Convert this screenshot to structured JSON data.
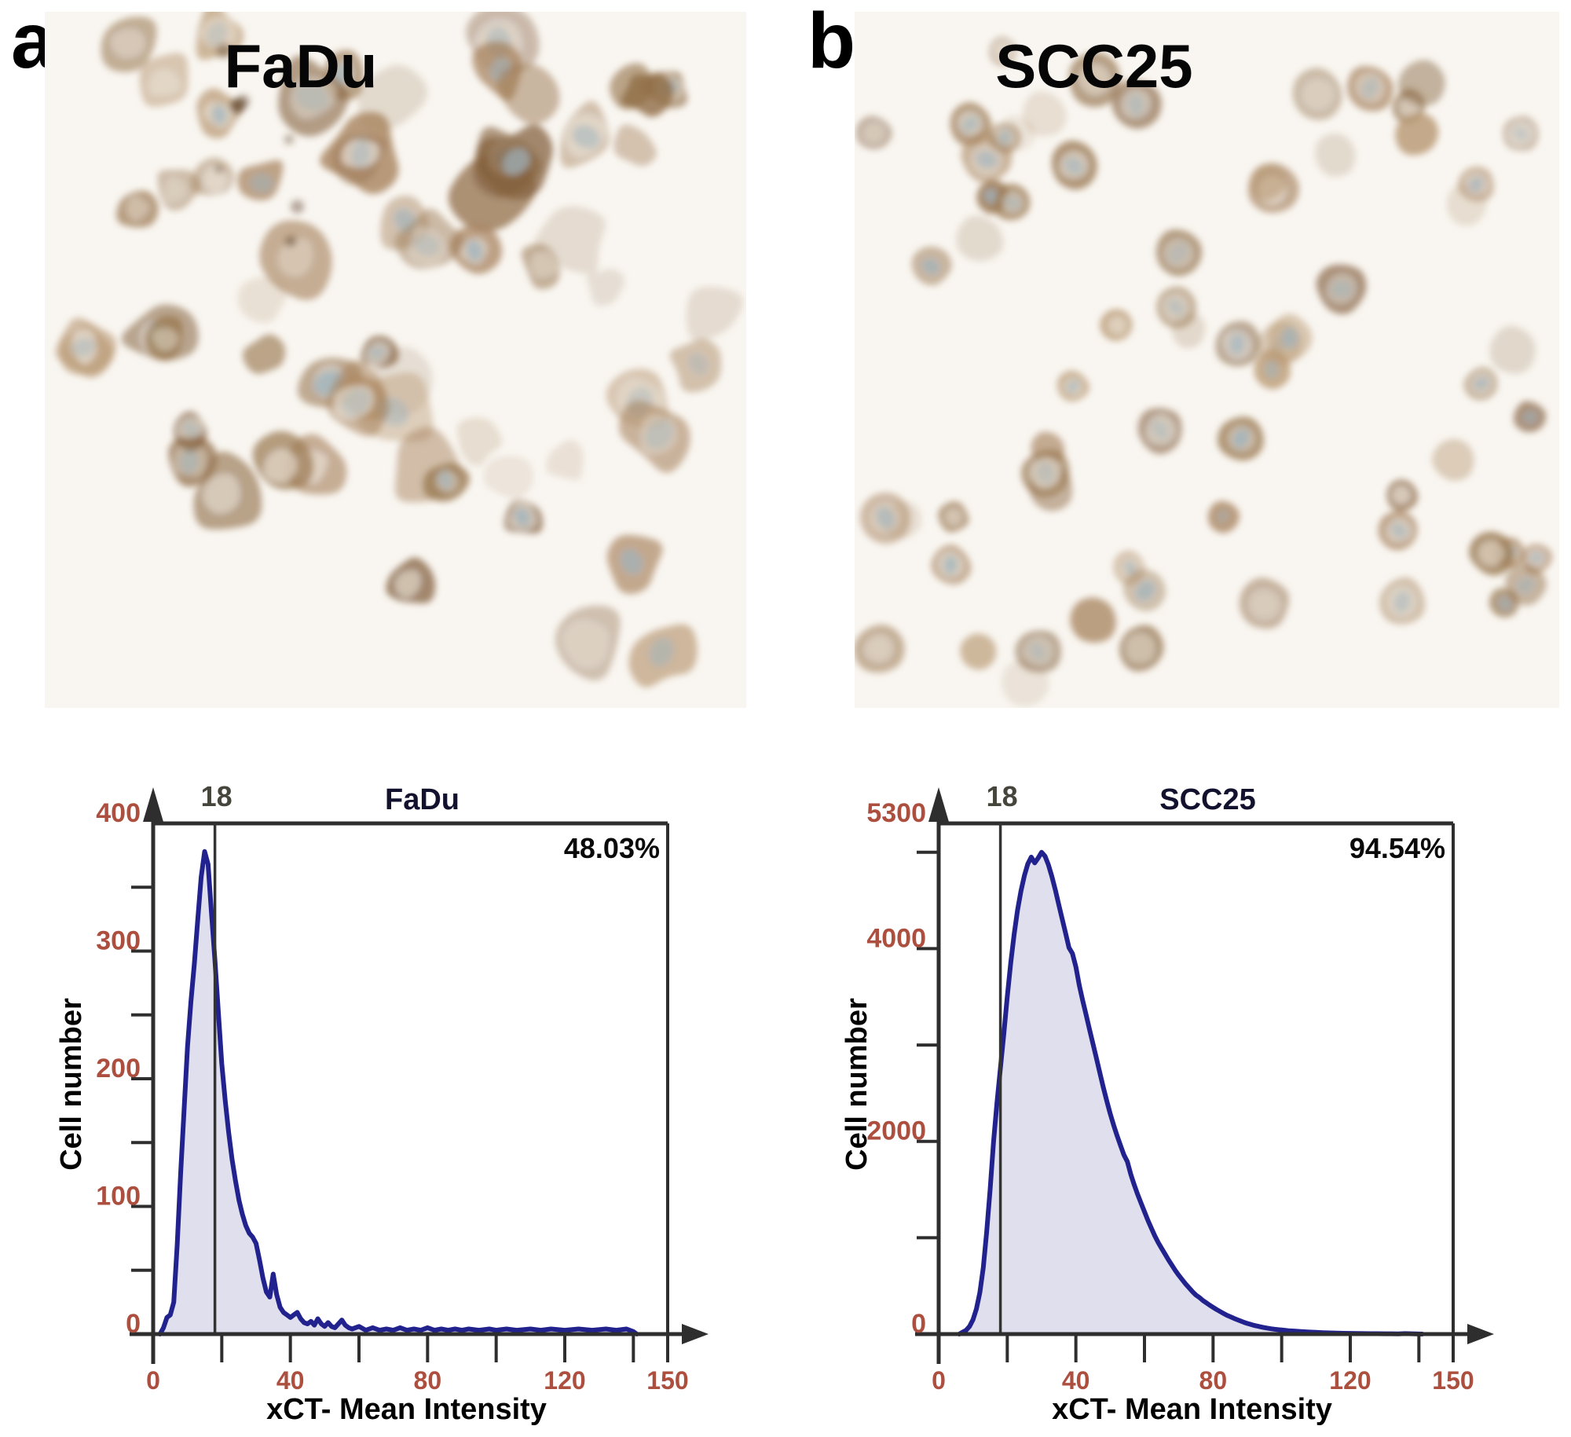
{
  "figure": {
    "panels": [
      {
        "letter": "a",
        "micrograph_title": "FaDu"
      },
      {
        "letter": "b",
        "micrograph_title": "SCC25"
      }
    ]
  },
  "micrograph": {
    "background": "#f9f6f1",
    "membrane_palette": [
      "#8f6b44",
      "#a5805a",
      "#b7966f",
      "#9a7850",
      "#83603d"
    ],
    "cytoplasm_color": "#e8dfd2",
    "nucleus_color": "#9fb3bd",
    "debris_color": "#5f4329",
    "fadu_cell_style": "irregular",
    "scc25_cell_style": "round"
  },
  "chart_colors": {
    "axis": "#2e2e2e",
    "tick_label": "#ad4f3f",
    "curve": "#22228e",
    "fill": "#cdcbe4",
    "title": "#12122f",
    "gate_line": "#333333",
    "gate_label": "#45453c",
    "percent": "#0a0a0a",
    "axis_label": "#000000"
  },
  "chart_data": [
    {
      "type": "area",
      "title": "FaDu",
      "xlabel": "xCT- Mean Intensity",
      "ylabel": "Cell number",
      "xlim": [
        0,
        150
      ],
      "ylim": [
        0,
        400
      ],
      "x_ticks": [
        0,
        20,
        40,
        60,
        80,
        100,
        120,
        140,
        150
      ],
      "x_tick_labels": [
        {
          "v": 0,
          "t": "0"
        },
        {
          "v": 40,
          "t": "40"
        },
        {
          "v": 80,
          "t": "80"
        },
        {
          "v": 120,
          "t": "120"
        },
        {
          "v": 150,
          "t": "150"
        }
      ],
      "y_ticks": [
        50,
        100,
        150,
        200,
        250,
        300,
        350
      ],
      "y_tick_labels": [
        {
          "v": 0,
          "t": "0"
        },
        {
          "v": 100,
          "t": "100"
        },
        {
          "v": 200,
          "t": "200"
        },
        {
          "v": 300,
          "t": "300"
        },
        {
          "v": 400,
          "t": "400"
        }
      ],
      "gate_value": 18,
      "gate_label": "18",
      "percent_label": "48.03%",
      "points": [
        [
          2,
          0
        ],
        [
          3,
          5
        ],
        [
          4,
          13
        ],
        [
          5,
          15
        ],
        [
          6,
          25
        ],
        [
          7,
          70
        ],
        [
          8,
          125
        ],
        [
          9,
          175
        ],
        [
          10,
          225
        ],
        [
          11,
          260
        ],
        [
          12,
          290
        ],
        [
          13,
          325
        ],
        [
          14,
          358
        ],
        [
          15,
          378
        ],
        [
          16,
          368
        ],
        [
          17,
          330
        ],
        [
          18,
          293
        ],
        [
          19,
          252
        ],
        [
          20,
          212
        ],
        [
          21,
          183
        ],
        [
          22,
          158
        ],
        [
          23,
          137
        ],
        [
          24,
          120
        ],
        [
          25,
          105
        ],
        [
          26,
          94
        ],
        [
          27,
          85
        ],
        [
          28,
          79
        ],
        [
          29,
          76
        ],
        [
          30,
          71
        ],
        [
          31,
          58
        ],
        [
          32,
          44
        ],
        [
          33,
          33
        ],
        [
          34,
          29
        ],
        [
          35,
          47
        ],
        [
          36,
          31
        ],
        [
          37,
          21
        ],
        [
          38,
          17
        ],
        [
          39,
          15
        ],
        [
          40,
          13
        ],
        [
          41,
          15
        ],
        [
          42,
          17
        ],
        [
          43,
          12
        ],
        [
          44,
          9
        ],
        [
          45,
          8
        ],
        [
          46,
          10
        ],
        [
          47,
          7
        ],
        [
          48,
          12
        ],
        [
          49,
          8
        ],
        [
          50,
          6
        ],
        [
          51,
          9
        ],
        [
          52,
          6
        ],
        [
          53,
          5
        ],
        [
          54,
          8
        ],
        [
          55,
          11
        ],
        [
          56,
          7
        ],
        [
          57,
          5
        ],
        [
          58,
          4
        ],
        [
          60,
          6
        ],
        [
          62,
          3
        ],
        [
          64,
          5
        ],
        [
          66,
          3
        ],
        [
          68,
          4
        ],
        [
          70,
          3
        ],
        [
          72,
          5
        ],
        [
          74,
          3
        ],
        [
          76,
          4
        ],
        [
          78,
          3
        ],
        [
          80,
          5
        ],
        [
          82,
          3
        ],
        [
          84,
          4
        ],
        [
          86,
          3
        ],
        [
          88,
          4
        ],
        [
          90,
          3
        ],
        [
          92,
          4
        ],
        [
          95,
          3
        ],
        [
          98,
          4
        ],
        [
          100,
          3
        ],
        [
          103,
          4
        ],
        [
          106,
          3
        ],
        [
          110,
          4
        ],
        [
          113,
          3
        ],
        [
          116,
          4
        ],
        [
          120,
          3
        ],
        [
          124,
          4
        ],
        [
          128,
          3
        ],
        [
          132,
          4
        ],
        [
          135,
          3
        ],
        [
          138,
          4
        ],
        [
          140,
          2
        ],
        [
          141,
          0
        ]
      ]
    },
    {
      "type": "area",
      "title": "SCC25",
      "xlabel": "xCT- Mean Intensity",
      "ylabel": "Cell number",
      "xlim": [
        0,
        150
      ],
      "ylim": [
        0,
        5300
      ],
      "x_ticks": [
        0,
        20,
        40,
        60,
        80,
        100,
        120,
        140,
        150
      ],
      "x_tick_labels": [
        {
          "v": 0,
          "t": "0"
        },
        {
          "v": 40,
          "t": "40"
        },
        {
          "v": 80,
          "t": "80"
        },
        {
          "v": 120,
          "t": "120"
        },
        {
          "v": 150,
          "t": "150"
        }
      ],
      "y_ticks": [
        1000,
        2000,
        3000,
        4000,
        5000
      ],
      "y_tick_labels": [
        {
          "v": 0,
          "t": "0"
        },
        {
          "v": 2000,
          "t": "2000"
        },
        {
          "v": 4000,
          "t": "4000"
        },
        {
          "v": 5300,
          "t": "5300"
        }
      ],
      "gate_value": 18,
      "gate_label": "18",
      "percent_label": "94.54%",
      "points": [
        [
          6,
          0
        ],
        [
          8,
          40
        ],
        [
          9,
          80
        ],
        [
          10,
          150
        ],
        [
          11,
          260
        ],
        [
          12,
          430
        ],
        [
          13,
          690
        ],
        [
          14,
          1060
        ],
        [
          15,
          1500
        ],
        [
          16,
          2000
        ],
        [
          17,
          2400
        ],
        [
          18,
          2760
        ],
        [
          19,
          3120
        ],
        [
          20,
          3500
        ],
        [
          21,
          3850
        ],
        [
          22,
          4150
        ],
        [
          23,
          4400
        ],
        [
          24,
          4600
        ],
        [
          25,
          4760
        ],
        [
          26,
          4880
        ],
        [
          27,
          4950
        ],
        [
          28,
          4890
        ],
        [
          29,
          4940
        ],
        [
          30,
          5000
        ],
        [
          31,
          4960
        ],
        [
          32,
          4870
        ],
        [
          33,
          4750
        ],
        [
          34,
          4610
        ],
        [
          35,
          4460
        ],
        [
          36,
          4310
        ],
        [
          37,
          4160
        ],
        [
          38,
          4010
        ],
        [
          39,
          3950
        ],
        [
          40,
          3810
        ],
        [
          41,
          3620
        ],
        [
          42,
          3460
        ],
        [
          43,
          3310
        ],
        [
          44,
          3160
        ],
        [
          45,
          3010
        ],
        [
          46,
          2860
        ],
        [
          47,
          2710
        ],
        [
          48,
          2560
        ],
        [
          49,
          2420
        ],
        [
          50,
          2290
        ],
        [
          51,
          2170
        ],
        [
          52,
          2060
        ],
        [
          53,
          1960
        ],
        [
          54,
          1860
        ],
        [
          55,
          1790
        ],
        [
          56,
          1660
        ],
        [
          57,
          1550
        ],
        [
          58,
          1450
        ],
        [
          59,
          1360
        ],
        [
          60,
          1270
        ],
        [
          61,
          1180
        ],
        [
          62,
          1100
        ],
        [
          63,
          1020
        ],
        [
          64,
          950
        ],
        [
          65,
          890
        ],
        [
          66,
          830
        ],
        [
          67,
          770
        ],
        [
          68,
          715
        ],
        [
          69,
          660
        ],
        [
          70,
          610
        ],
        [
          71,
          565
        ],
        [
          72,
          520
        ],
        [
          73,
          480
        ],
        [
          74,
          440
        ],
        [
          75,
          405
        ],
        [
          76,
          380
        ],
        [
          77,
          350
        ],
        [
          78,
          325
        ],
        [
          79,
          300
        ],
        [
          80,
          278
        ],
        [
          81,
          255
        ],
        [
          82,
          235
        ],
        [
          83,
          215
        ],
        [
          84,
          196
        ],
        [
          85,
          180
        ],
        [
          86,
          165
        ],
        [
          87,
          150
        ],
        [
          88,
          136
        ],
        [
          89,
          122
        ],
        [
          90,
          110
        ],
        [
          91,
          100
        ],
        [
          92,
          90
        ],
        [
          93,
          82
        ],
        [
          94,
          74
        ],
        [
          95,
          67
        ],
        [
          96,
          60
        ],
        [
          97,
          55
        ],
        [
          98,
          50
        ],
        [
          99,
          46
        ],
        [
          100,
          42
        ],
        [
          102,
          35
        ],
        [
          104,
          30
        ],
        [
          106,
          25
        ],
        [
          108,
          21
        ],
        [
          110,
          18
        ],
        [
          112,
          15
        ],
        [
          114,
          12
        ],
        [
          116,
          10
        ],
        [
          118,
          8
        ],
        [
          120,
          7
        ],
        [
          122,
          6
        ],
        [
          124,
          5
        ],
        [
          126,
          4
        ],
        [
          128,
          4
        ],
        [
          130,
          3
        ],
        [
          132,
          3
        ],
        [
          134,
          2
        ],
        [
          136,
          5
        ],
        [
          138,
          3
        ],
        [
          140,
          1
        ],
        [
          141,
          0
        ]
      ]
    }
  ]
}
